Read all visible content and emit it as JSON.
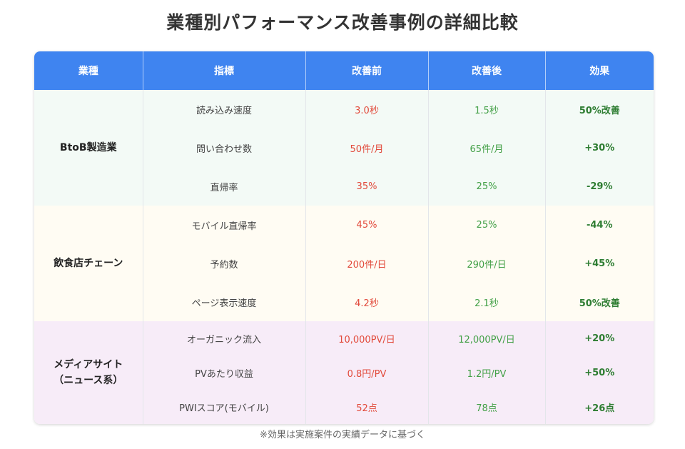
{
  "title": "業種別パフォーマンス改善事例の詳細比較",
  "colors": {
    "header_bg": "#3f84f0",
    "before_text": "#e24a3b",
    "after_text": "#43a047",
    "effect_text": "#2e7d32"
  },
  "headers": [
    "業種",
    "指標",
    "改善前",
    "改善後",
    "効果"
  ],
  "groups": [
    {
      "industry": "BtoB製造業",
      "bg": "#f3faf6",
      "rows": [
        {
          "metric": "読み込み速度",
          "before": "3.0秒",
          "after": "1.5秒",
          "effect": "50%改善"
        },
        {
          "metric": "問い合わせ数",
          "before": "50件/月",
          "after": "65件/月",
          "effect": "+30%"
        },
        {
          "metric": "直帰率",
          "before": "35%",
          "after": "25%",
          "effect": "-29%"
        }
      ]
    },
    {
      "industry": "飲食店チェーン",
      "bg": "#fffcf3",
      "rows": [
        {
          "metric": "モバイル直帰率",
          "before": "45%",
          "after": "25%",
          "effect": "-44%"
        },
        {
          "metric": "予約数",
          "before": "200件/日",
          "after": "290件/日",
          "effect": "+45%"
        },
        {
          "metric": "ページ表示速度",
          "before": "4.2秒",
          "after": "2.1秒",
          "effect": "50%改善"
        }
      ]
    },
    {
      "industry_lines": [
        "メディアサイト",
        "（ニュース系）"
      ],
      "bg": "#f7ecf8",
      "rows": [
        {
          "metric": "オーガニック流入",
          "before": "10,000PV/日",
          "after": "12,000PV/日",
          "effect": "+20%"
        },
        {
          "metric": "PVあたり収益",
          "before": "0.8円/PV",
          "after": "1.2円/PV",
          "effect": "+50%"
        },
        {
          "metric": "PWIスコア(モバイル)",
          "before": "52点",
          "after": "78点",
          "effect": "+26点"
        }
      ]
    }
  ],
  "note": "※効果は実施案件の実績データに基づく"
}
